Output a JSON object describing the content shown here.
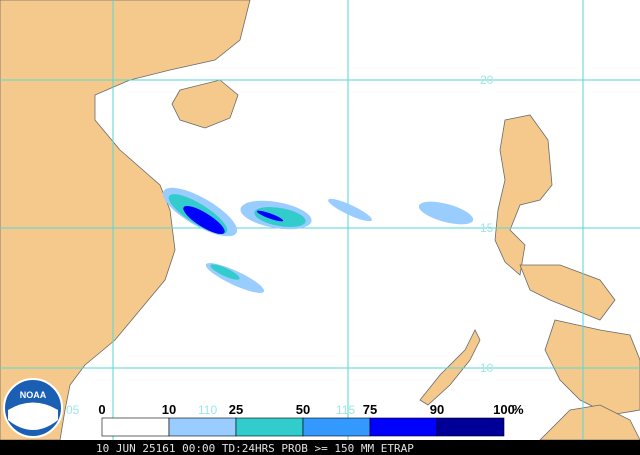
{
  "map": {
    "lat_labels": [
      "20",
      "15",
      "10",
      "05"
    ],
    "lon_labels": [
      "110",
      "115"
    ],
    "legend": {
      "labels": [
        "0",
        "10",
        "25",
        "50",
        "75",
        "90",
        "100"
      ],
      "unit": "%",
      "colors": [
        "#ffffff",
        "#99ccff",
        "#33cccc",
        "#3399ff",
        "#0000ff",
        "#000099"
      ]
    },
    "logo": "NOAA",
    "caption": "10 JUN 25161 00:00 TD:24HRS PROB >= 150 MM ETRAP"
  }
}
